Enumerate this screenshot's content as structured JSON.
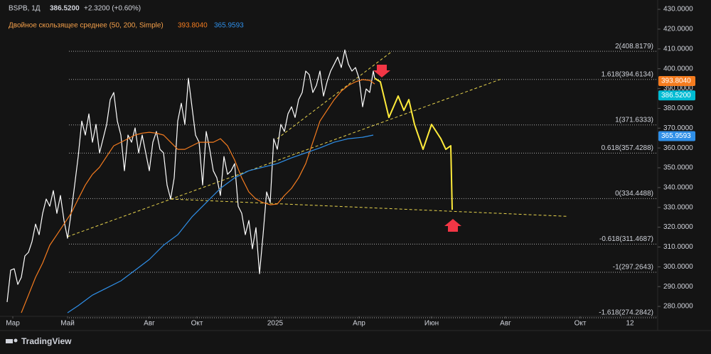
{
  "chart_data": {
    "type": "line",
    "legend": {
      "symbol": "BSPB, 1Д",
      "price": "386.5200",
      "change": "+2.3200 (+0.60%)",
      "indicator": "Двойное скользящее среднее (50, 200, Simple)",
      "ma50": "393.8040",
      "ma200": "365.9593"
    },
    "xlim": [
      0,
      925
    ],
    "ylim": [
      275,
      434.7
    ],
    "xticks": [
      {
        "value": 18,
        "label": "Мар"
      },
      {
        "value": 95,
        "label": "Май"
      },
      {
        "value": 210,
        "label": "Авг"
      },
      {
        "value": 277,
        "label": "Окт"
      },
      {
        "value": 387,
        "label": "2025"
      },
      {
        "value": 505,
        "label": "Апр"
      },
      {
        "value": 607,
        "label": "Июн"
      },
      {
        "value": 711,
        "label": "Авг"
      },
      {
        "value": 816,
        "label": "Окт"
      },
      {
        "value": 886,
        "label": "12"
      }
    ],
    "yticks": [
      {
        "value": 280,
        "label": "280.0000"
      },
      {
        "value": 290,
        "label": "290.0000"
      },
      {
        "value": 300,
        "label": "300.0000"
      },
      {
        "value": 310,
        "label": "310.0000"
      },
      {
        "value": 320,
        "label": "320.0000"
      },
      {
        "value": 330,
        "label": "330.0000"
      },
      {
        "value": 340,
        "label": "340.0000"
      },
      {
        "value": 350,
        "label": "350.0000"
      },
      {
        "value": 360,
        "label": "360.0000"
      },
      {
        "value": 370,
        "label": "370.0000"
      },
      {
        "value": 380,
        "label": "380.0000"
      },
      {
        "value": 390,
        "label": "390.0000"
      },
      {
        "value": 400,
        "label": "400.0000"
      },
      {
        "value": 410,
        "label": "410.0000"
      },
      {
        "value": 420,
        "label": "420.0000"
      },
      {
        "value": 430,
        "label": "430.0000"
      }
    ],
    "series": [
      {
        "color": "#ffffff",
        "x": [
          10,
          15,
          20,
          25,
          30,
          35,
          40,
          45,
          50,
          55,
          60,
          65,
          70,
          75,
          80,
          85,
          90,
          95,
          100,
          105,
          110,
          115,
          120,
          125,
          130,
          135,
          140,
          145,
          150,
          155,
          160,
          165,
          170,
          175,
          180,
          185,
          190,
          195,
          200,
          205,
          210,
          215,
          220,
          225,
          230,
          235,
          240,
          245,
          250,
          255,
          260,
          265,
          270,
          275,
          280,
          285,
          290,
          295,
          300,
          305,
          310,
          315,
          320,
          325,
          330,
          335,
          340,
          345,
          350,
          355,
          360,
          365,
          370,
          375,
          380,
          385,
          390,
          395,
          400,
          405,
          410,
          415,
          420,
          425,
          430,
          435,
          440,
          445,
          450,
          455,
          460,
          465,
          470,
          475,
          480,
          485,
          490,
          495,
          500,
          505,
          510,
          515,
          520,
          525,
          527
        ],
        "values": [
          282.2,
          298.3,
          299.0,
          291.1,
          294.7,
          305.5,
          307.3,
          312.7,
          321.6,
          316.2,
          327.0,
          334.2,
          330.6,
          338.5,
          327.0,
          336.0,
          323.4,
          314.4,
          327.0,
          341.3,
          355.7,
          373.6,
          366.5,
          377.2,
          362.9,
          371.9,
          357.5,
          364.7,
          371.9,
          384.4,
          388.0,
          373.6,
          366.5,
          348.5,
          366.5,
          362.9,
          370.1,
          357.5,
          366.5,
          357.5,
          348.5,
          362.9,
          368.3,
          359.3,
          357.5,
          341.3,
          334.2,
          344.9,
          373.6,
          382.6,
          371.9,
          395.2,
          380.8,
          366.5,
          362.9,
          341.3,
          368.3,
          359.3,
          348.5,
          344.9,
          336.0,
          355.7,
          346.7,
          348.5,
          352.1,
          330.6,
          327.0,
          316.2,
          323.4,
          309.1,
          319.8,
          296.5,
          316.2,
          337.8,
          332.4,
          364.7,
          359.3,
          371.9,
          368.3,
          377.2,
          380.8,
          375.4,
          384.4,
          388.0,
          398.8,
          397.0,
          388.0,
          391.6,
          398.8,
          386.2,
          393.4,
          398.8,
          402.3,
          405.9,
          400.6,
          409.5,
          402.3,
          398.8,
          400.6,
          395.2,
          380.8,
          389.8,
          388.0,
          398.8,
          395.2
        ]
      },
      {
        "color": "#f57c1f",
        "x": [
          30,
          40,
          50,
          60,
          70,
          80,
          90,
          100,
          110,
          120,
          130,
          140,
          150,
          160,
          170,
          180,
          190,
          200,
          210,
          220,
          230,
          240,
          250,
          260,
          270,
          280,
          290,
          300,
          310,
          320,
          330,
          340,
          350,
          360,
          370,
          380,
          390,
          400,
          410,
          420,
          430,
          440,
          450,
          460,
          470,
          480,
          490,
          500,
          510,
          520,
          527
        ],
        "values": [
          276.8,
          285.7,
          294.7,
          301.9,
          310.9,
          316.2,
          321.6,
          327.0,
          334.2,
          341.3,
          346.7,
          350.3,
          355.7,
          361.1,
          362.9,
          364.7,
          366.5,
          367.5,
          367.9,
          367.5,
          366.5,
          362.9,
          359.3,
          359.3,
          361.1,
          362.9,
          362.9,
          362.9,
          364.7,
          361.1,
          353.9,
          344.9,
          337.8,
          334.2,
          332.4,
          331.3,
          331.7,
          336.0,
          339.6,
          344.9,
          352.1,
          362.9,
          373.6,
          379.0,
          384.4,
          388.7,
          391.6,
          393.4,
          394.5,
          394.1,
          392.3
        ]
      },
      {
        "color": "#2f8fe8",
        "x": [
          95,
          110,
          130,
          150,
          170,
          190,
          210,
          230,
          250,
          270,
          290,
          310,
          330,
          350,
          370,
          390,
          410,
          430,
          450,
          470,
          490,
          510,
          525
        ],
        "values": [
          276.8,
          280.4,
          285.7,
          289.3,
          292.9,
          298.3,
          303.7,
          310.9,
          316.2,
          325.2,
          332.4,
          339.6,
          344.9,
          348.5,
          350.3,
          352.1,
          355.0,
          357.5,
          360.0,
          362.9,
          364.7,
          365.4,
          366.5
        ]
      },
      {
        "color": "#ffeb3b",
        "x": [
          527,
          535,
          547,
          560,
          568,
          575,
          583,
          595,
          607,
          620,
          627,
          634,
          636
        ],
        "values": [
          395.2,
          393.4,
          375.4,
          386.2,
          379.0,
          384.4,
          371.9,
          359.3,
          371.9,
          364.7,
          359.3,
          361.1,
          328.8
        ]
      }
    ],
    "trend_lines": [
      {
        "x": [
          95,
          705
        ],
        "values": [
          315.2,
          394.8
        ]
      },
      {
        "x": [
          240,
          797
        ],
        "values": [
          334.2,
          325.5
        ]
      },
      {
        "x": [
          390,
          550
        ],
        "values": [
          364.7,
          408.4
        ]
      }
    ],
    "fib_levels": [
      {
        "value": 408.8179,
        "label": "2(408.8179)"
      },
      {
        "value": 394.6134,
        "label": "1.618(394.6134)"
      },
      {
        "value": 371.6333,
        "label": "1(371.6333)"
      },
      {
        "value": 357.4288,
        "label": "0.618(357.4288)"
      },
      {
        "value": 334.4488,
        "label": "0(334.4488)"
      },
      {
        "value": 311.4687,
        "label": "-0.618(311.4687)"
      },
      {
        "value": 297.2643,
        "label": "-1(297.2643)"
      },
      {
        "value": 274.2842,
        "label": "-1.618(274.2842)"
      }
    ],
    "price_badges": [
      {
        "value": 393.804,
        "label": "393.8040",
        "color": "#f57c1f"
      },
      {
        "value": 386.52,
        "label": "386.5200",
        "color": "#00bcd4"
      },
      {
        "value": 365.9593,
        "label": "365.9593",
        "color": "#2f8fe8"
      }
    ],
    "brand": "TradingView"
  }
}
